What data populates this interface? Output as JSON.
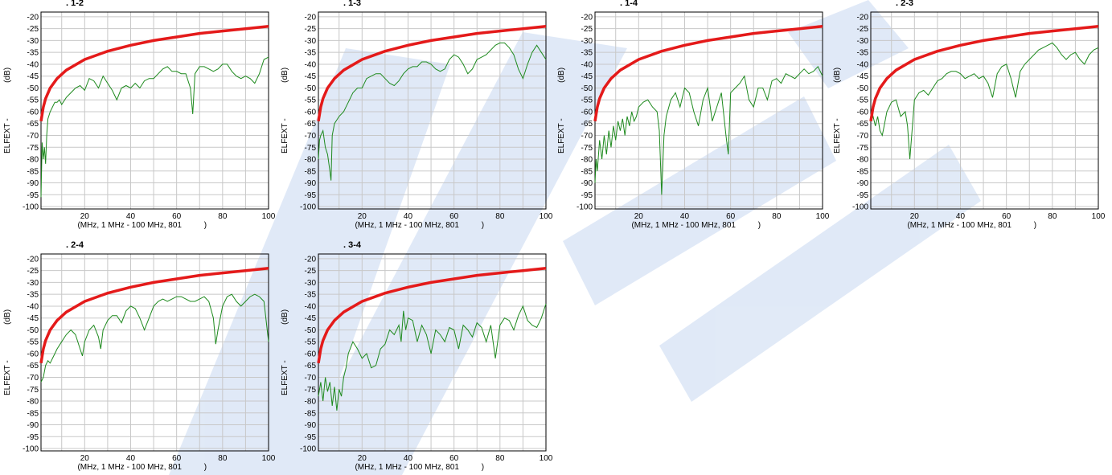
{
  "colors": {
    "limit": "#e41a1a",
    "measured": "#1e8a1e",
    "grid": "#c8c8c8",
    "watermark": "#2b6bc8"
  },
  "chart_data": [
    {
      "type": "line",
      "title": ". 1-2",
      "ylabel": "ELFEXT -                (dB)",
      "xlabel": "(MHz, 1 MHz - 100 MHz, 801          )",
      "xlim": [
        1,
        100
      ],
      "ylim": [
        -101,
        -18
      ],
      "xticks": [
        20,
        40,
        60,
        80,
        100
      ],
      "yticks": [
        -20,
        -25,
        -30,
        -35,
        -40,
        -45,
        -50,
        -55,
        -60,
        -65,
        -70,
        -75,
        -80,
        -85,
        -90,
        -95,
        -100
      ],
      "limit": {
        "x": [
          1,
          2,
          3,
          5,
          8,
          12,
          20,
          30,
          40,
          50,
          60,
          70,
          80,
          90,
          100
        ],
        "y": [
          -64,
          -58,
          -54.5,
          -50,
          -46,
          -42.5,
          -38,
          -34.5,
          -32,
          -30,
          -28.5,
          -27,
          -26,
          -25,
          -24
        ]
      },
      "series": {
        "x": [
          1,
          1.5,
          2,
          2.5,
          3,
          3.5,
          4,
          5,
          6,
          7,
          8,
          9,
          10,
          12,
          14,
          16,
          18,
          20,
          22,
          24,
          26,
          28,
          30,
          32,
          34,
          36,
          38,
          40,
          42,
          44,
          46,
          48,
          50,
          52,
          54,
          56,
          58,
          60,
          62,
          64,
          66,
          67,
          68,
          70,
          72,
          74,
          76,
          78,
          80,
          82,
          84,
          86,
          88,
          90,
          92,
          94,
          96,
          98,
          100
        ],
        "y": [
          -96,
          -73,
          -80,
          -75,
          -82,
          -70,
          -63,
          -60,
          -58,
          -56,
          -56,
          -55,
          -57,
          -54,
          -52,
          -50,
          -49,
          -51,
          -46,
          -47,
          -50,
          -45,
          -48,
          -51,
          -55,
          -50,
          -49,
          -50,
          -48,
          -50,
          -47,
          -46,
          -46,
          -44,
          -42,
          -41,
          -43,
          -43,
          -44,
          -44,
          -50,
          -61,
          -44,
          -41,
          -41,
          -42,
          -43,
          -42,
          -40,
          -40,
          -43,
          -45,
          -46,
          -45,
          -46,
          -48,
          -44,
          -38,
          -37
        ]
      }
    },
    {
      "type": "line",
      "title": ". 1-3",
      "ylabel": "ELFEXT -                (dB)",
      "xlabel": "(MHz, 1 MHz - 100 MHz, 801          )",
      "xlim": [
        1,
        100
      ],
      "ylim": [
        -101,
        -18
      ],
      "xticks": [
        20,
        40,
        60,
        80,
        100
      ],
      "yticks": [
        -20,
        -25,
        -30,
        -35,
        -40,
        -45,
        -50,
        -55,
        -60,
        -65,
        -70,
        -75,
        -80,
        -85,
        -90,
        -95,
        -100
      ],
      "limit": {
        "x": [
          1,
          2,
          3,
          5,
          8,
          12,
          20,
          30,
          40,
          50,
          60,
          70,
          80,
          90,
          100
        ],
        "y": [
          -64,
          -58,
          -54.5,
          -50,
          -46,
          -42.5,
          -38,
          -34.5,
          -32,
          -30,
          -28.5,
          -27,
          -26,
          -25,
          -24
        ]
      },
      "series": {
        "x": [
          1,
          1.5,
          2,
          3,
          4,
          5,
          6,
          6.5,
          7,
          8,
          10,
          12,
          14,
          16,
          18,
          20,
          22,
          24,
          26,
          28,
          30,
          32,
          34,
          36,
          38,
          40,
          42,
          44,
          46,
          48,
          50,
          52,
          54,
          56,
          58,
          60,
          62,
          64,
          66,
          68,
          70,
          72,
          74,
          76,
          78,
          80,
          82,
          84,
          86,
          88,
          90,
          92,
          94,
          96,
          98,
          100
        ],
        "y": [
          -80,
          -72,
          -70,
          -68,
          -75,
          -78,
          -85,
          -89,
          -70,
          -65,
          -62,
          -60,
          -56,
          -52,
          -50,
          -50,
          -46,
          -45,
          -44,
          -44,
          -46,
          -48,
          -49,
          -47,
          -44,
          -42,
          -41,
          -41,
          -39,
          -39,
          -40,
          -42,
          -43,
          -42,
          -38,
          -36,
          -37,
          -40,
          -44,
          -42,
          -38,
          -37,
          -36,
          -34,
          -32,
          -31,
          -31,
          -33,
          -36,
          -42,
          -46,
          -40,
          -35,
          -32,
          -35,
          -38
        ]
      }
    },
    {
      "type": "line",
      "title": ". 1-4",
      "ylabel": "ELFEXT -                (dB)",
      "xlabel": "(MHz, 1 MHz - 100 MHz, 801          )",
      "xlim": [
        1,
        100
      ],
      "ylim": [
        -101,
        -18
      ],
      "xticks": [
        20,
        40,
        60,
        80,
        100
      ],
      "yticks": [
        -20,
        -25,
        -30,
        -35,
        -40,
        -45,
        -50,
        -55,
        -60,
        -65,
        -70,
        -75,
        -80,
        -85,
        -90,
        -95,
        -100
      ],
      "limit": {
        "x": [
          1,
          2,
          3,
          5,
          8,
          12,
          20,
          30,
          40,
          50,
          60,
          70,
          80,
          90,
          100
        ],
        "y": [
          -64,
          -58,
          -54.5,
          -50,
          -46,
          -42.5,
          -38,
          -34.5,
          -32,
          -30,
          -28.5,
          -27,
          -26,
          -25,
          -24
        ]
      },
      "series": {
        "x": [
          1,
          1.5,
          2,
          3,
          4,
          5,
          6,
          7,
          8,
          9,
          10,
          11,
          12,
          13,
          14,
          15,
          16,
          17,
          18,
          19,
          20,
          22,
          24,
          26,
          28,
          29,
          30,
          31,
          32,
          34,
          36,
          38,
          40,
          42,
          44,
          46,
          48,
          50,
          52,
          54,
          56,
          58,
          59,
          60,
          62,
          64,
          66,
          68,
          70,
          72,
          74,
          76,
          78,
          80,
          82,
          84,
          86,
          88,
          90,
          92,
          94,
          96,
          98,
          100
        ],
        "y": [
          -90,
          -80,
          -85,
          -72,
          -80,
          -70,
          -78,
          -68,
          -75,
          -66,
          -72,
          -64,
          -68,
          -63,
          -70,
          -62,
          -66,
          -60,
          -64,
          -62,
          -58,
          -56,
          -55,
          -58,
          -60,
          -68,
          -95,
          -70,
          -62,
          -55,
          -52,
          -58,
          -50,
          -52,
          -60,
          -66,
          -55,
          -50,
          -64,
          -58,
          -52,
          -70,
          -78,
          -52,
          -50,
          -48,
          -45,
          -55,
          -58,
          -50,
          -50,
          -55,
          -47,
          -46,
          -48,
          -44,
          -45,
          -46,
          -44,
          -42,
          -44,
          -43,
          -41,
          -45
        ]
      }
    },
    {
      "type": "line",
      "title": ". 2-3",
      "ylabel": "ELFEXT -                (dB)",
      "xlabel": "(MHz, 1 MHz - 100 MHz, 801          )",
      "xlim": [
        1,
        100
      ],
      "ylim": [
        -101,
        -18
      ],
      "xticks": [
        20,
        40,
        60,
        80,
        100
      ],
      "yticks": [
        -20,
        -25,
        -30,
        -35,
        -40,
        -45,
        -50,
        -55,
        -60,
        -65,
        -70,
        -75,
        -80,
        -85,
        -90,
        -95,
        -100
      ],
      "limit": {
        "x": [
          1,
          2,
          3,
          5,
          8,
          12,
          20,
          30,
          40,
          50,
          60,
          70,
          80,
          90,
          100
        ],
        "y": [
          -64,
          -58,
          -54.5,
          -50,
          -46,
          -42.5,
          -38,
          -34.5,
          -32,
          -30,
          -28.5,
          -27,
          -26,
          -25,
          -24
        ]
      },
      "series": {
        "x": [
          1,
          2,
          3,
          4,
          5,
          6,
          7,
          8,
          9,
          10,
          12,
          14,
          16,
          17,
          18,
          20,
          22,
          24,
          26,
          28,
          30,
          32,
          34,
          36,
          38,
          40,
          42,
          44,
          46,
          48,
          50,
          52,
          54,
          56,
          58,
          60,
          62,
          64,
          66,
          68,
          70,
          72,
          74,
          76,
          78,
          80,
          82,
          84,
          86,
          88,
          90,
          92,
          94,
          96,
          98,
          100
        ],
        "y": [
          -64,
          -62,
          -66,
          -62,
          -68,
          -70,
          -65,
          -60,
          -58,
          -56,
          -55,
          -62,
          -60,
          -66,
          -80,
          -55,
          -52,
          -51,
          -53,
          -50,
          -47,
          -46,
          -44,
          -43,
          -43,
          -44,
          -46,
          -45,
          -44,
          -46,
          -45,
          -48,
          -54,
          -44,
          -41,
          -40,
          -46,
          -54,
          -43,
          -40,
          -38,
          -36,
          -34,
          -33,
          -32,
          -31,
          -33,
          -36,
          -38,
          -36,
          -35,
          -38,
          -40,
          -36,
          -34,
          -33
        ]
      }
    },
    {
      "type": "line",
      "title": ". 2-4",
      "ylabel": "ELFEXT -                (dB)",
      "xlabel": "(MHz, 1 MHz - 100 MHz, 801          )",
      "xlim": [
        1,
        100
      ],
      "ylim": [
        -101,
        -18
      ],
      "xticks": [
        20,
        40,
        60,
        80,
        100
      ],
      "yticks": [
        -20,
        -25,
        -30,
        -35,
        -40,
        -45,
        -50,
        -55,
        -60,
        -65,
        -70,
        -75,
        -80,
        -85,
        -90,
        -95,
        -100
      ],
      "limit": {
        "x": [
          1,
          2,
          3,
          5,
          8,
          12,
          20,
          30,
          40,
          50,
          60,
          70,
          80,
          90,
          100
        ],
        "y": [
          -64,
          -58,
          -54.5,
          -50,
          -46,
          -42.5,
          -38,
          -34.5,
          -32,
          -30,
          -28.5,
          -27,
          -26,
          -25,
          -24
        ]
      },
      "series": {
        "x": [
          1,
          2,
          3,
          4,
          5,
          6,
          7,
          8,
          10,
          12,
          14,
          16,
          18,
          19,
          20,
          22,
          24,
          26,
          27,
          28,
          30,
          32,
          34,
          36,
          38,
          40,
          42,
          44,
          46,
          48,
          50,
          52,
          54,
          56,
          58,
          60,
          62,
          64,
          66,
          68,
          70,
          72,
          74,
          76,
          77,
          78,
          80,
          82,
          84,
          86,
          88,
          90,
          92,
          94,
          96,
          98,
          100
        ],
        "y": [
          -72,
          -70,
          -65,
          -63,
          -64,
          -62,
          -60,
          -58,
          -55,
          -52,
          -50,
          -52,
          -58,
          -61,
          -55,
          -50,
          -48,
          -53,
          -58,
          -50,
          -46,
          -44,
          -44,
          -47,
          -42,
          -40,
          -41,
          -45,
          -50,
          -45,
          -40,
          -38,
          -37,
          -38,
          -37,
          -36,
          -36,
          -37,
          -38,
          -38,
          -37,
          -36,
          -38,
          -45,
          -56,
          -50,
          -40,
          -36,
          -35,
          -38,
          -40,
          -38,
          -36,
          -35,
          -36,
          -38,
          -55
        ]
      }
    },
    {
      "type": "line",
      "title": ". 3-4",
      "ylabel": "ELFEXT -                (dB)",
      "xlabel": "(MHz, 1 MHz - 100 MHz, 801          )",
      "xlim": [
        1,
        100
      ],
      "ylim": [
        -101,
        -18
      ],
      "xticks": [
        20,
        40,
        60,
        80,
        100
      ],
      "yticks": [
        -20,
        -25,
        -30,
        -35,
        -40,
        -45,
        -50,
        -55,
        -60,
        -65,
        -70,
        -75,
        -80,
        -85,
        -90,
        -95,
        -100
      ],
      "limit": {
        "x": [
          1,
          2,
          3,
          5,
          8,
          12,
          20,
          30,
          40,
          50,
          60,
          70,
          80,
          90,
          100
        ],
        "y": [
          -64,
          -58,
          -54.5,
          -50,
          -46,
          -42.5,
          -38,
          -34.5,
          -32,
          -30,
          -28.5,
          -27,
          -26,
          -25,
          -24
        ]
      },
      "series": {
        "x": [
          1,
          2,
          3,
          4,
          5,
          6,
          7,
          8,
          9,
          10,
          11,
          12,
          13,
          14,
          16,
          18,
          20,
          22,
          24,
          26,
          28,
          30,
          32,
          34,
          36,
          37,
          38,
          39,
          40,
          42,
          44,
          46,
          48,
          50,
          52,
          54,
          56,
          58,
          60,
          62,
          64,
          66,
          68,
          70,
          72,
          74,
          76,
          78,
          80,
          82,
          84,
          86,
          88,
          90,
          92,
          94,
          96,
          98,
          100
        ],
        "y": [
          -78,
          -72,
          -80,
          -70,
          -76,
          -72,
          -82,
          -74,
          -84,
          -75,
          -78,
          -70,
          -66,
          -60,
          -55,
          -58,
          -62,
          -60,
          -66,
          -65,
          -58,
          -56,
          -50,
          -52,
          -48,
          -55,
          -42,
          -50,
          -45,
          -46,
          -55,
          -48,
          -52,
          -60,
          -50,
          -52,
          -55,
          -49,
          -50,
          -58,
          -48,
          -50,
          -53,
          -47,
          -49,
          -55,
          -48,
          -62,
          -48,
          -45,
          -46,
          -50,
          -44,
          -40,
          -46,
          -48,
          -49,
          -45,
          -39
        ]
      }
    }
  ]
}
